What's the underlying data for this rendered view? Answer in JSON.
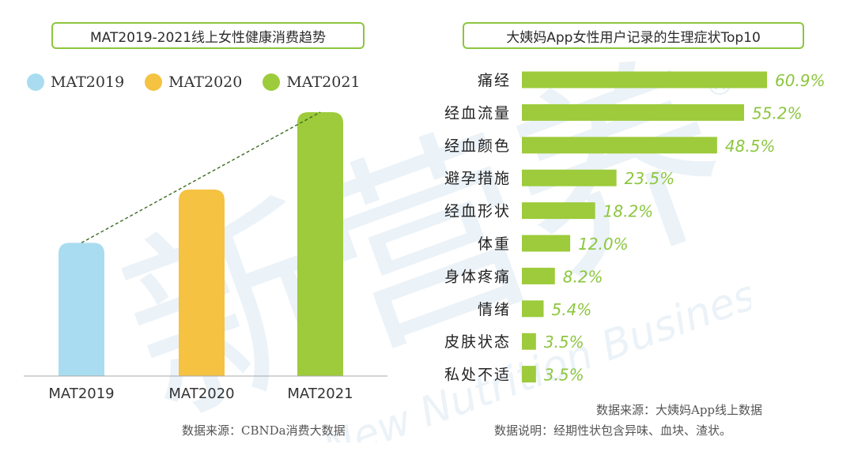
{
  "left_chart": {
    "title": "MAT2019-2021线上女性健康消费趋势",
    "source": "数据来源：CBNDa消费大数据",
    "legend": [
      {
        "label": "MAT2019",
        "color": "#a9dcf0"
      },
      {
        "label": "MAT2020",
        "color": "#f5c242"
      },
      {
        "label": "MAT2021",
        "color": "#9dcb3b"
      }
    ]
  },
  "right_chart": {
    "title": "大姨妈App女性用户记录的生理症状Top10",
    "source": "数据来源：大姨妈App线上数据",
    "note": "数据说明：经期性状包含异味、血块、渣状。"
  },
  "chart_data": [
    {
      "type": "bar",
      "title": "MAT2019-2021线上女性健康消费趋势",
      "categories": [
        "MAT2019",
        "MAT2020",
        "MAT2021"
      ],
      "values": [
        1.0,
        1.4,
        1.98
      ],
      "colors": [
        "#a9dcf0",
        "#f5c242",
        "#9dcb3b"
      ],
      "trendline": true,
      "ylabel": "",
      "xlabel": "",
      "axis_values_shown": false
    },
    {
      "type": "bar",
      "orientation": "horizontal",
      "title": "大姨妈App女性用户记录的生理症状Top10",
      "categories": [
        "痛经",
        "经血流量",
        "经血颜色",
        "避孕措施",
        "经血形状",
        "体重",
        "身体疼痛",
        "情绪",
        "皮肤状态",
        "私处不适"
      ],
      "values": [
        60.9,
        55.2,
        48.5,
        23.5,
        18.2,
        12.0,
        8.2,
        5.4,
        3.5,
        3.5
      ],
      "labels": [
        "60.9%",
        "55.2%",
        "48.5%",
        "23.5%",
        "18.2%",
        "12.0%",
        "8.2%",
        "5.4%",
        "3.5%",
        "3.5%"
      ],
      "unit": "%",
      "xlim": [
        0,
        60.9
      ],
      "color": "#9dcb3b",
      "label_color": "#8cc63e"
    }
  ],
  "watermark": {
    "text": "新营养",
    "subtext": "New Nutrition Business",
    "mark": "®"
  }
}
